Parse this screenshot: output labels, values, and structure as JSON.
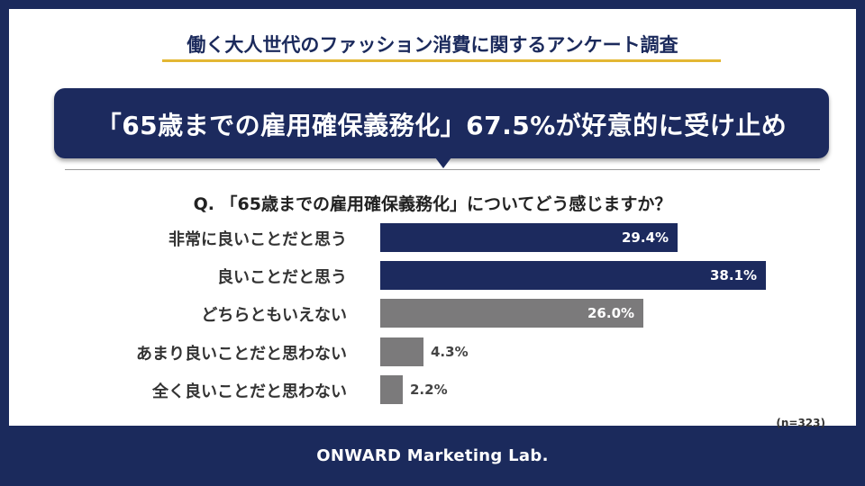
{
  "survey_title": "働く大人世代のファッション消費に関するアンケート調査",
  "headline": "「65歳までの雇用確保義務化」67.5%が好意的に受け止め",
  "chart_data": {
    "type": "bar",
    "orientation": "horizontal",
    "title": "Q. 「65歳までの雇用確保義務化」についてどう感じますか？",
    "categories": [
      "非常に良いことだと思う",
      "良いことだと思う",
      "どちらともいえない",
      "あまり良いことだと思わない",
      "全く良いことだと思わない"
    ],
    "values": [
      29.4,
      38.1,
      26.0,
      4.3,
      2.2
    ],
    "value_labels": [
      "29.4%",
      "38.1%",
      "26.0%",
      "4.3%",
      "2.2%"
    ],
    "unit": "%",
    "xlim": [
      0,
      40
    ],
    "colors": [
      "#1c2a5e",
      "#1c2a5e",
      "#7b7a7b",
      "#7b7a7b",
      "#7b7a7b"
    ],
    "sample_note": "(n=323)"
  },
  "footer": "ONWARD Marketing Lab."
}
